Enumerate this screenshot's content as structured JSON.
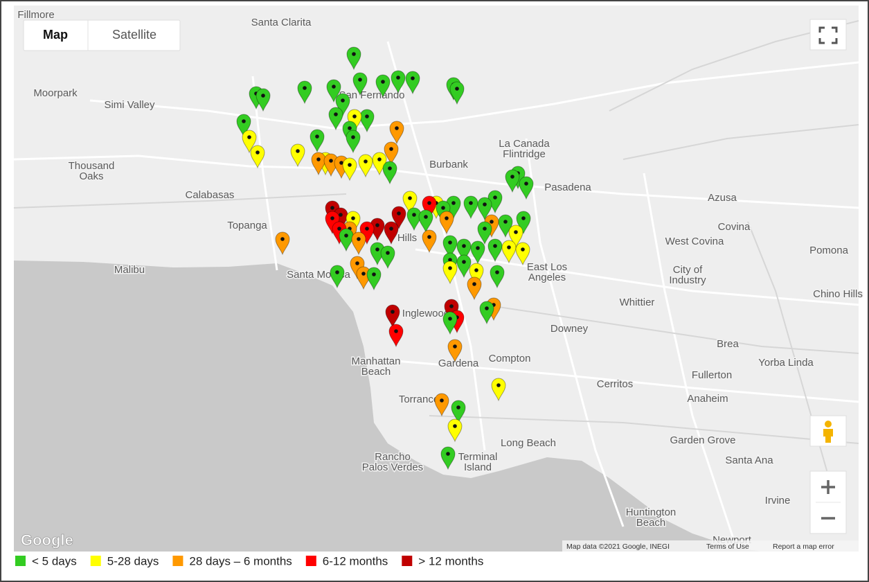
{
  "map_type_buttons": [
    "Map",
    "Satellite"
  ],
  "places": [
    {
      "lines": [
        "Fillmore"
      ]
    },
    {
      "lines": [
        "Santa Clarita"
      ]
    },
    {
      "lines": [
        "Moorpark"
      ]
    },
    {
      "lines": [
        "Simi Valley"
      ]
    },
    {
      "lines": [
        "Thousand",
        "Oaks"
      ]
    },
    {
      "lines": [
        "Calabasas"
      ]
    },
    {
      "lines": [
        "Topanga"
      ]
    },
    {
      "lines": [
        "Malibu"
      ]
    },
    {
      "lines": [
        "Santa Monica"
      ]
    },
    {
      "lines": [
        "San Fernando"
      ]
    },
    {
      "lines": [
        "Burbank"
      ]
    },
    {
      "lines": [
        "La Canada",
        "Flintridge"
      ]
    },
    {
      "lines": [
        "Pasadena"
      ]
    },
    {
      "lines": [
        "Azusa"
      ]
    },
    {
      "lines": [
        "Covina"
      ]
    },
    {
      "lines": [
        "West Covina"
      ]
    },
    {
      "lines": [
        "Pomona"
      ]
    },
    {
      "lines": [
        "East Los",
        "Angeles"
      ]
    },
    {
      "lines": [
        "City of",
        "Industry"
      ]
    },
    {
      "lines": [
        "Whittier"
      ]
    },
    {
      "lines": [
        "Chino Hills"
      ]
    },
    {
      "lines": [
        "Downey"
      ]
    },
    {
      "lines": [
        "Brea"
      ]
    },
    {
      "lines": [
        "Yorba Linda"
      ]
    },
    {
      "lines": [
        "Fullerton"
      ]
    },
    {
      "lines": [
        "Compton"
      ]
    },
    {
      "lines": [
        "Gardena"
      ]
    },
    {
      "lines": [
        "Manhattan",
        "Beach"
      ]
    },
    {
      "lines": [
        "Inglewood"
      ]
    },
    {
      "lines": [
        "Hills"
      ]
    },
    {
      "lines": [
        "Cerritos"
      ]
    },
    {
      "lines": [
        "Anaheim"
      ]
    },
    {
      "lines": [
        "Torrance"
      ]
    },
    {
      "lines": [
        "Long Beach"
      ]
    },
    {
      "lines": [
        "Garden Grove"
      ]
    },
    {
      "lines": [
        "Santa Ana"
      ]
    },
    {
      "lines": [
        "Rancho",
        "Palos Verdes"
      ]
    },
    {
      "lines": [
        "Terminal",
        "Island"
      ]
    },
    {
      "lines": [
        "Irvine"
      ]
    },
    {
      "lines": [
        "Huntington",
        "Beach"
      ]
    },
    {
      "lines": [
        "Newport"
      ]
    }
  ],
  "logo": "Google",
  "attribution": [
    "Map data ©2021 Google, INEGI",
    "Terms of Use",
    "Report a map error"
  ],
  "legend": {
    "items": [
      {
        "label": "< 5 days",
        "color": "#33cc22"
      },
      {
        "label": "5-28 days",
        "color": "#ffff00"
      },
      {
        "label": "28 days – 6 months",
        "color": "#ff9900"
      },
      {
        "label": "6-12 months",
        "color": "#ff0000"
      },
      {
        "label": "> 12 months",
        "color": "#c00000"
      }
    ]
  }
}
